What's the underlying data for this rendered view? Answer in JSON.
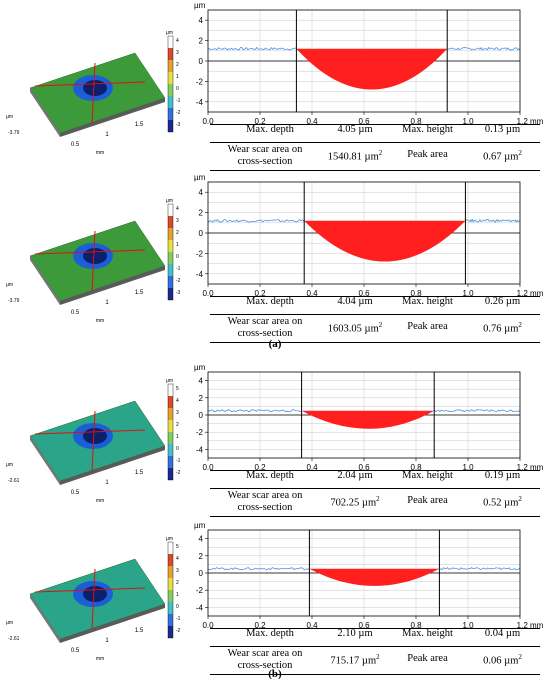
{
  "chart_data": [
    {
      "type": "area",
      "xlabel": "mm",
      "ylabel": "µm",
      "xlim": [
        0,
        1.2
      ],
      "ylim": [
        -5,
        5
      ],
      "xticks": [
        "0.0",
        "0.2",
        "0.4",
        "0.6",
        "0.8",
        "1.0",
        "1.2 mm"
      ],
      "yticks": [
        "4",
        "2",
        "0",
        "-2",
        "-4"
      ],
      "grid": true,
      "surface_level": 1.2,
      "scar": {
        "x_start": 0.34,
        "x_end": 0.92,
        "x_min": 0.63,
        "y_min": -2.8
      },
      "markers_x": [
        0.34,
        0.92
      ]
    },
    {
      "type": "area",
      "xlabel": "mm",
      "ylabel": "µm",
      "xlim": [
        0,
        1.2
      ],
      "ylim": [
        -5,
        5
      ],
      "xticks": [
        "0.0",
        "0.2",
        "0.4",
        "0.6",
        "0.8",
        "1.0",
        "1.2 mm"
      ],
      "yticks": [
        "4",
        "2",
        "0",
        "-2",
        "-4"
      ],
      "grid": true,
      "surface_level": 1.2,
      "scar": {
        "x_start": 0.37,
        "x_end": 0.99,
        "x_min": 0.68,
        "y_min": -2.8
      },
      "markers_x": [
        0.37,
        0.99
      ]
    },
    {
      "type": "area",
      "xlabel": "mm",
      "ylabel": "µm",
      "xlim": [
        0,
        1.2
      ],
      "ylim": [
        -5,
        5
      ],
      "xticks": [
        "0.0",
        "0.2",
        "0.4",
        "0.6",
        "0.8",
        "1.0",
        "1.2 mm"
      ],
      "yticks": [
        "4",
        "2",
        "0",
        "-2",
        "-4"
      ],
      "grid": true,
      "surface_level": 0.5,
      "scar": {
        "x_start": 0.36,
        "x_end": 0.87,
        "x_min": 0.62,
        "y_min": -1.6
      },
      "markers_x": [
        0.36,
        0.87
      ]
    },
    {
      "type": "area",
      "xlabel": "mm",
      "ylabel": "µm",
      "xlim": [
        0,
        1.2
      ],
      "ylim": [
        -5,
        5
      ],
      "xticks": [
        "0.0",
        "0.2",
        "0.4",
        "0.6",
        "0.8",
        "1.0",
        "1.2 mm"
      ],
      "yticks": [
        "4",
        "2",
        "0",
        "-2",
        "-4"
      ],
      "grid": true,
      "surface_level": 0.5,
      "scar": {
        "x_start": 0.39,
        "x_end": 0.89,
        "x_min": 0.64,
        "y_min": -1.5
      },
      "markers_x": [
        0.39,
        0.89
      ]
    }
  ],
  "metrics": [
    {
      "max_depth_label": "Max. depth",
      "max_depth": "4.05 µm",
      "max_height_label": "Max. height",
      "max_height": "0.13 µm",
      "area_label_1": "Wear scar area on",
      "area_label_2": "cross-section",
      "area_value": "1540.81 µm",
      "area_unit_sup": "2",
      "peak_label": "Peak area",
      "peak_value": "0.67 µm",
      "peak_unit_sup": "2"
    },
    {
      "max_depth_label": "Max. depth",
      "max_depth": "4.04 µm",
      "max_height_label": "Max. height",
      "max_height": "0.26 µm",
      "area_label_1": "Wear scar area on",
      "area_label_2": "cross-section",
      "area_value": "1603.05 µm",
      "area_unit_sup": "2",
      "peak_label": "Peak area",
      "peak_value": "0.76 µm",
      "peak_unit_sup": "2"
    },
    {
      "max_depth_label": "Max. depth",
      "max_depth": "2.04 µm",
      "max_height_label": "Max. height",
      "max_height": "0.19 µm",
      "area_label_1": "Wear scar area on",
      "area_label_2": "cross-section",
      "area_value": "702.25 µm",
      "area_unit_sup": "2",
      "peak_label": "Peak area",
      "peak_value": "0.52 µm",
      "peak_unit_sup": "2"
    },
    {
      "max_depth_label": "Max. depth",
      "max_depth": "2.10 µm",
      "max_height_label": "Max. height",
      "max_height": "0.04 µm",
      "area_label_1": "Wear scar area on",
      "area_label_2": "cross-section",
      "area_value": "715.17 µm",
      "area_unit_sup": "2",
      "peak_label": "Peak area",
      "peak_value": "0.06 µm",
      "peak_unit_sup": "2"
    }
  ],
  "thumbs": [
    {
      "surface": "#3d9a3a",
      "colorbar": [
        "4",
        "3",
        "2",
        "1",
        "0",
        "-1",
        "-2",
        "-3"
      ],
      "x_labels": [
        "0.5",
        "1",
        "1.5"
      ],
      "y_labels": [
        "-3.79"
      ],
      "unit": "µm",
      "axis_unit": "mm"
    },
    {
      "surface": "#3d9a3a",
      "colorbar": [
        "4",
        "3",
        "2",
        "1",
        "0",
        "-1",
        "-2",
        "-3"
      ],
      "x_labels": [
        "0.5",
        "1",
        "1.5"
      ],
      "y_labels": [
        "-3.79"
      ],
      "unit": "µm",
      "axis_unit": "mm"
    },
    {
      "surface": "#2aa58a",
      "colorbar": [
        "5",
        "4",
        "3",
        "2",
        "1",
        "0",
        "-1",
        "-2"
      ],
      "x_labels": [
        "0.5",
        "1",
        "1.5"
      ],
      "y_labels": [
        "-2.61"
      ],
      "unit": "µm",
      "axis_unit": "mm"
    },
    {
      "surface": "#2aa58a",
      "colorbar": [
        "5",
        "4",
        "3",
        "2",
        "1",
        "0",
        "-1",
        "-2"
      ],
      "x_labels": [
        "0.5",
        "1",
        "1.5"
      ],
      "y_labels": [
        "-2.61"
      ],
      "unit": "µm",
      "axis_unit": "mm"
    }
  ],
  "captions": {
    "a": "(a)",
    "b": "(b)"
  },
  "colors": {
    "scar_fill": "#ff1f1f",
    "profile_line": "#4a90e2",
    "axis": "#000000",
    "grid": "#c8c8c8"
  }
}
